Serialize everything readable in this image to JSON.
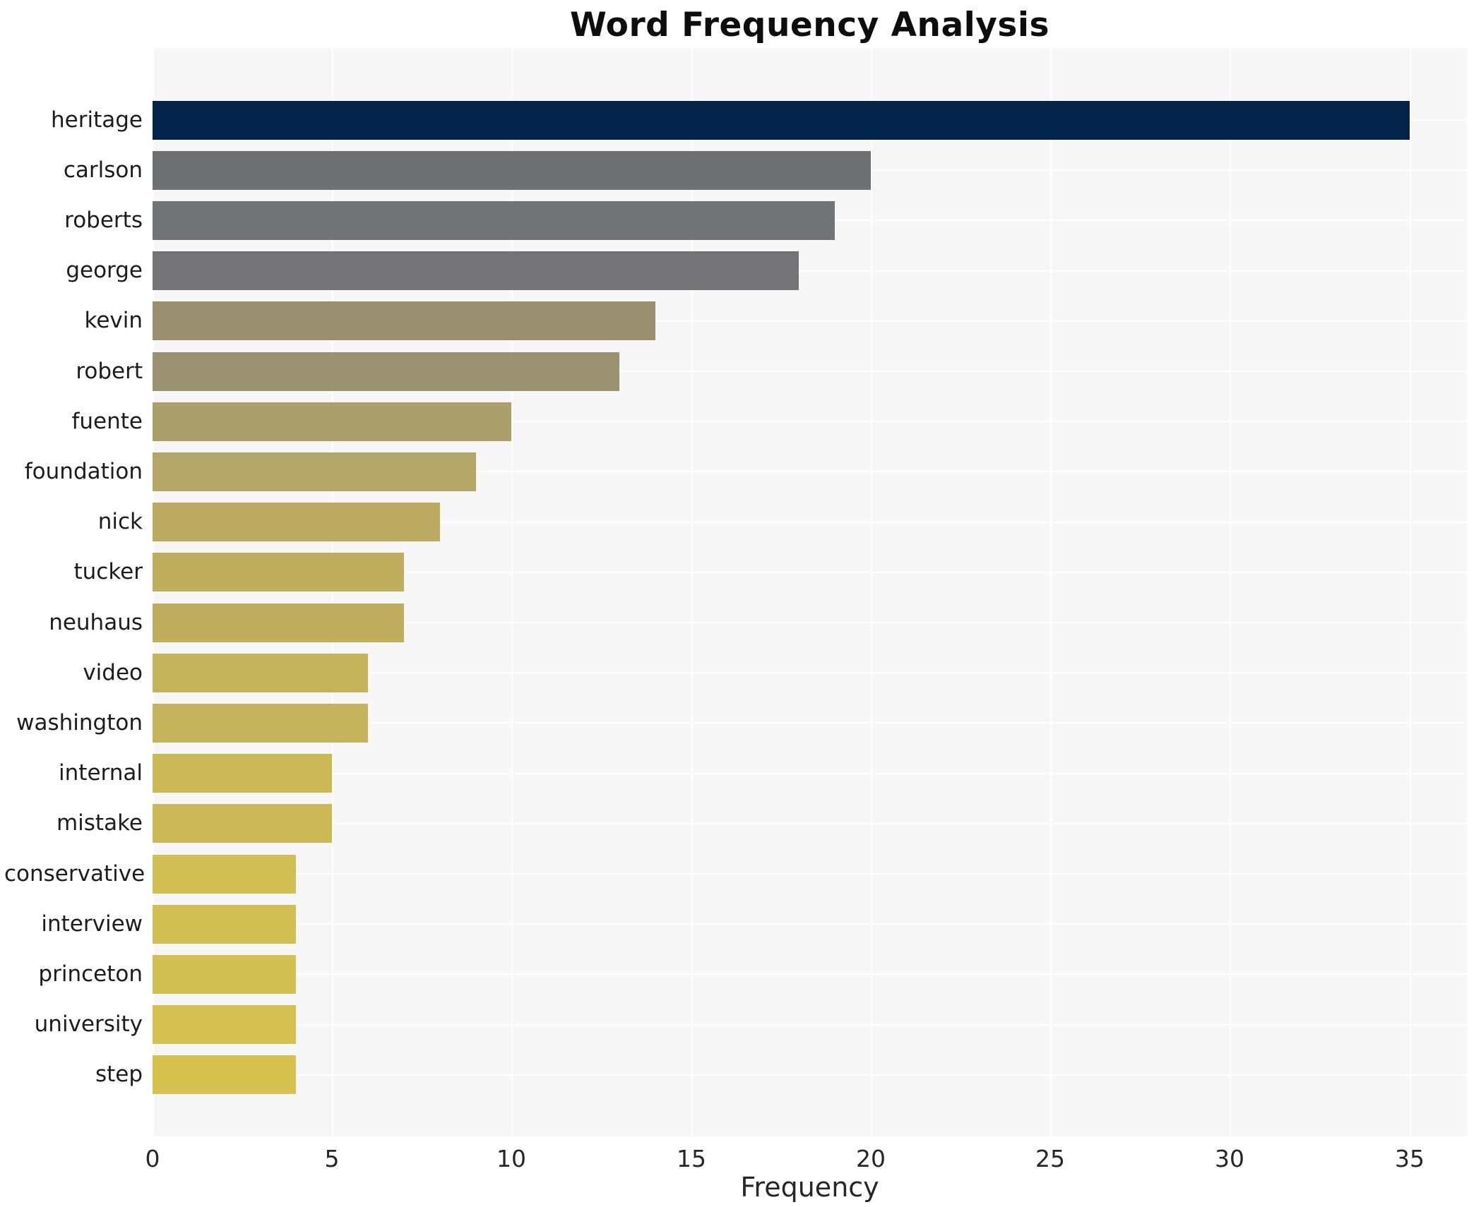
{
  "title": "Word Frequency Analysis",
  "chart_data": {
    "type": "bar",
    "orientation": "horizontal",
    "title": "Word Frequency Analysis",
    "xlabel": "Frequency",
    "ylabel": "",
    "categories": [
      "heritage",
      "carlson",
      "roberts",
      "george",
      "kevin",
      "robert",
      "fuente",
      "foundation",
      "nick",
      "tucker",
      "neuhaus",
      "video",
      "washington",
      "internal",
      "mistake",
      "conservative",
      "interview",
      "princeton",
      "university",
      "step"
    ],
    "values": [
      35,
      20,
      19,
      18,
      14,
      13,
      10,
      9,
      8,
      7,
      7,
      6,
      6,
      5,
      5,
      4,
      4,
      4,
      4,
      4
    ],
    "bar_colors": [
      "#04234b",
      "#6f7072",
      "#727375",
      "#747477",
      "#98906f",
      "#9b9272",
      "#aba06b",
      "#b2a766",
      "#bbaa60",
      "#c0ae5f",
      "#c0ae5f",
      "#c5b35c",
      "#c5b35c",
      "#cbb958",
      "#cbb958",
      "#d2bf53",
      "#d2bf53",
      "#d3c052",
      "#d5c150",
      "#d6c24f"
    ],
    "xlim": [
      0,
      36.6
    ],
    "xticks": [
      0,
      5,
      10,
      15,
      20,
      25,
      30,
      35
    ],
    "grid": true,
    "legend": false,
    "plot_background": "#f7f7f7",
    "grid_color": "#ffffff",
    "tick_label_color": "#262626",
    "category_label_color": "#1c1c1c",
    "title_color": "#0d0d0d"
  }
}
